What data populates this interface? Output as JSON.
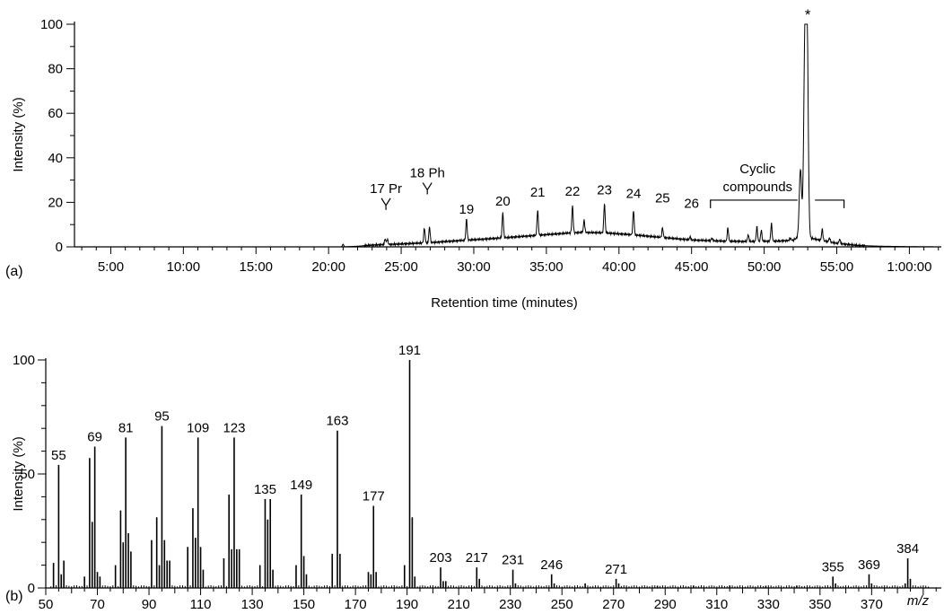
{
  "chart_data": [
    {
      "panel_label": "(a)",
      "type": "line",
      "xlabel": "Retention time (minutes)",
      "ylabel": "Intensity (%)",
      "xlim": [
        2.5,
        62.2
      ],
      "ylim": [
        0,
        100
      ],
      "x_tick_values": [
        5,
        10,
        15,
        20,
        25,
        30,
        35,
        40,
        45,
        50,
        55,
        60
      ],
      "x_tick_labels": [
        "5:00",
        "10:00",
        "15:00",
        "20:00",
        "25:00",
        "30:00",
        "35:00",
        "40:00",
        "45:00",
        "50:00",
        "55:00",
        "1:00:00"
      ],
      "y_tick_values": [
        0,
        20,
        40,
        60,
        80,
        100
      ],
      "y_tick_labels": [
        "0",
        "20",
        "40",
        "60",
        "80",
        "100"
      ],
      "background": {
        "x": [
          2.5,
          21.0,
          22.0,
          23.0,
          25.0,
          27.0,
          29.0,
          31.0,
          33.0,
          35.0,
          36.5,
          37.5,
          39.0,
          41.0,
          43.0,
          45.0,
          47.0,
          49.0,
          51.0,
          52.0,
          52.5,
          53.5,
          55.0,
          56.5,
          58.0,
          60.0,
          62.2
        ],
        "y": [
          0,
          0,
          0.3,
          0.8,
          1.3,
          1.9,
          2.8,
          3.6,
          4.5,
          5.5,
          6.2,
          6.5,
          6.3,
          5.4,
          4.2,
          3.1,
          2.6,
          2.4,
          2.6,
          3.0,
          5.0,
          3.5,
          1.6,
          0.6,
          0.3,
          0.1,
          0
        ]
      },
      "peaks": [
        {
          "x": 21.0,
          "y": 1.2
        },
        {
          "x": 23.9,
          "y": 3.6
        },
        {
          "x": 24.05,
          "y": 3.4
        },
        {
          "x": 26.6,
          "y": 8.5
        },
        {
          "x": 26.95,
          "y": 9.0
        },
        {
          "x": 29.5,
          "y": 12.5
        },
        {
          "x": 32.0,
          "y": 15.5
        },
        {
          "x": 34.4,
          "y": 16.5
        },
        {
          "x": 36.8,
          "y": 18.5
        },
        {
          "x": 37.6,
          "y": 12.0
        },
        {
          "x": 39.0,
          "y": 19.5
        },
        {
          "x": 41.0,
          "y": 16.5
        },
        {
          "x": 43.0,
          "y": 8.5
        },
        {
          "x": 44.9,
          "y": 4.5
        },
        {
          "x": 46.4,
          "y": 4.0
        },
        {
          "x": 47.5,
          "y": 8.5
        },
        {
          "x": 48.9,
          "y": 5.5
        },
        {
          "x": 49.5,
          "y": 9.0
        },
        {
          "x": 49.8,
          "y": 7.5
        },
        {
          "x": 50.5,
          "y": 10.5
        },
        {
          "x": 51.8,
          "y": 4.0
        },
        {
          "x": 52.5,
          "y": 35.0
        },
        {
          "x": 52.8,
          "y": 85.0
        },
        {
          "x": 52.95,
          "y": 100.0
        },
        {
          "x": 54.0,
          "y": 8.0
        },
        {
          "x": 54.5,
          "y": 4.0
        },
        {
          "x": 55.2,
          "y": 3.5
        }
      ],
      "annotations": [
        {
          "text": "17 Pr",
          "x": 23.95,
          "y": 19,
          "marker": "fork"
        },
        {
          "text": "18 Ph",
          "x": 26.8,
          "y": 26,
          "marker": "fork"
        },
        {
          "text": "19",
          "x": 29.5,
          "y": 15
        },
        {
          "text": "20",
          "x": 32.0,
          "y": 18.5
        },
        {
          "text": "21",
          "x": 34.4,
          "y": 22.5
        },
        {
          "text": "22",
          "x": 36.8,
          "y": 23
        },
        {
          "text": "23",
          "x": 39.0,
          "y": 23.5
        },
        {
          "text": "24",
          "x": 41.0,
          "y": 22
        },
        {
          "text": "25",
          "x": 43.0,
          "y": 20
        },
        {
          "text": "26",
          "x": 45.0,
          "y": 17.5
        },
        {
          "text": "*",
          "x": 53.0,
          "y": 102
        }
      ],
      "bracket": {
        "label_lines": [
          "Cyclic",
          "compounds"
        ],
        "x_start": 46.3,
        "x_end": 55.5,
        "gap_start": 52.3,
        "gap_end": 53.5,
        "y": 21
      }
    },
    {
      "panel_label": "(b)",
      "type": "bar",
      "xlabel": "m/z",
      "ylabel": "Intensity (%)",
      "xlim": [
        50,
        397
      ],
      "ylim": [
        0,
        100
      ],
      "x_tick_values": [
        50,
        70,
        90,
        110,
        130,
        150,
        170,
        190,
        210,
        230,
        250,
        270,
        290,
        310,
        330,
        350,
        370
      ],
      "x_tick_labels": [
        "50",
        "70",
        "90",
        "110",
        "130",
        "150",
        "170",
        "190",
        "210",
        "230",
        "250",
        "270",
        "290",
        "310",
        "330",
        "350",
        "370"
      ],
      "y_tick_values": [
        0,
        50,
        100
      ],
      "y_tick_labels": [
        "0",
        "50",
        "100"
      ],
      "peaks": [
        {
          "mz": 53,
          "v": 11
        },
        {
          "mz": 55,
          "v": 54,
          "label": "55"
        },
        {
          "mz": 56,
          "v": 6
        },
        {
          "mz": 57,
          "v": 12
        },
        {
          "mz": 65,
          "v": 5
        },
        {
          "mz": 67,
          "v": 57
        },
        {
          "mz": 68,
          "v": 29
        },
        {
          "mz": 69,
          "v": 62,
          "label": "69"
        },
        {
          "mz": 70,
          "v": 7
        },
        {
          "mz": 71,
          "v": 5
        },
        {
          "mz": 77,
          "v": 10
        },
        {
          "mz": 79,
          "v": 34
        },
        {
          "mz": 80,
          "v": 20
        },
        {
          "mz": 81,
          "v": 66,
          "label": "81"
        },
        {
          "mz": 82,
          "v": 24
        },
        {
          "mz": 83,
          "v": 16
        },
        {
          "mz": 91,
          "v": 21
        },
        {
          "mz": 93,
          "v": 31
        },
        {
          "mz": 94,
          "v": 10
        },
        {
          "mz": 95,
          "v": 71,
          "label": "95"
        },
        {
          "mz": 96,
          "v": 21
        },
        {
          "mz": 97,
          "v": 12
        },
        {
          "mz": 98,
          "v": 12
        },
        {
          "mz": 105,
          "v": 18
        },
        {
          "mz": 107,
          "v": 35
        },
        {
          "mz": 108,
          "v": 22
        },
        {
          "mz": 109,
          "v": 66,
          "label": "109"
        },
        {
          "mz": 110,
          "v": 18
        },
        {
          "mz": 111,
          "v": 8
        },
        {
          "mz": 119,
          "v": 13
        },
        {
          "mz": 121,
          "v": 41
        },
        {
          "mz": 122,
          "v": 17
        },
        {
          "mz": 123,
          "v": 66,
          "label": "123"
        },
        {
          "mz": 124,
          "v": 17
        },
        {
          "mz": 125,
          "v": 17
        },
        {
          "mz": 133,
          "v": 10
        },
        {
          "mz": 135,
          "v": 39,
          "label": "135"
        },
        {
          "mz": 136,
          "v": 30
        },
        {
          "mz": 137,
          "v": 39
        },
        {
          "mz": 138,
          "v": 8
        },
        {
          "mz": 147,
          "v": 10
        },
        {
          "mz": 149,
          "v": 41,
          "label": "149"
        },
        {
          "mz": 150,
          "v": 14
        },
        {
          "mz": 151,
          "v": 6
        },
        {
          "mz": 161,
          "v": 15
        },
        {
          "mz": 163,
          "v": 69,
          "label": "163"
        },
        {
          "mz": 164,
          "v": 15
        },
        {
          "mz": 175,
          "v": 7
        },
        {
          "mz": 176,
          "v": 6
        },
        {
          "mz": 177,
          "v": 36,
          "label": "177"
        },
        {
          "mz": 178,
          "v": 7
        },
        {
          "mz": 189,
          "v": 10
        },
        {
          "mz": 191,
          "v": 100,
          "label": "191"
        },
        {
          "mz": 192,
          "v": 31
        },
        {
          "mz": 193,
          "v": 5
        },
        {
          "mz": 203,
          "v": 9,
          "label": "203"
        },
        {
          "mz": 204,
          "v": 3
        },
        {
          "mz": 205,
          "v": 3
        },
        {
          "mz": 217,
          "v": 9,
          "label": "217"
        },
        {
          "mz": 218,
          "v": 4
        },
        {
          "mz": 231,
          "v": 8,
          "label": "231"
        },
        {
          "mz": 232,
          "v": 2
        },
        {
          "mz": 246,
          "v": 6,
          "label": "246"
        },
        {
          "mz": 247,
          "v": 2
        },
        {
          "mz": 259,
          "v": 2
        },
        {
          "mz": 271,
          "v": 4,
          "label": "271"
        },
        {
          "mz": 272,
          "v": 2
        },
        {
          "mz": 287,
          "v": 1
        },
        {
          "mz": 301,
          "v": 1
        },
        {
          "mz": 315,
          "v": 1
        },
        {
          "mz": 329,
          "v": 1
        },
        {
          "mz": 341,
          "v": 1
        },
        {
          "mz": 355,
          "v": 5,
          "label": "355"
        },
        {
          "mz": 356,
          "v": 2
        },
        {
          "mz": 369,
          "v": 6,
          "label": "369"
        },
        {
          "mz": 370,
          "v": 2
        },
        {
          "mz": 383,
          "v": 2
        },
        {
          "mz": 384,
          "v": 13,
          "label": "384"
        },
        {
          "mz": 385,
          "v": 4
        }
      ]
    }
  ]
}
